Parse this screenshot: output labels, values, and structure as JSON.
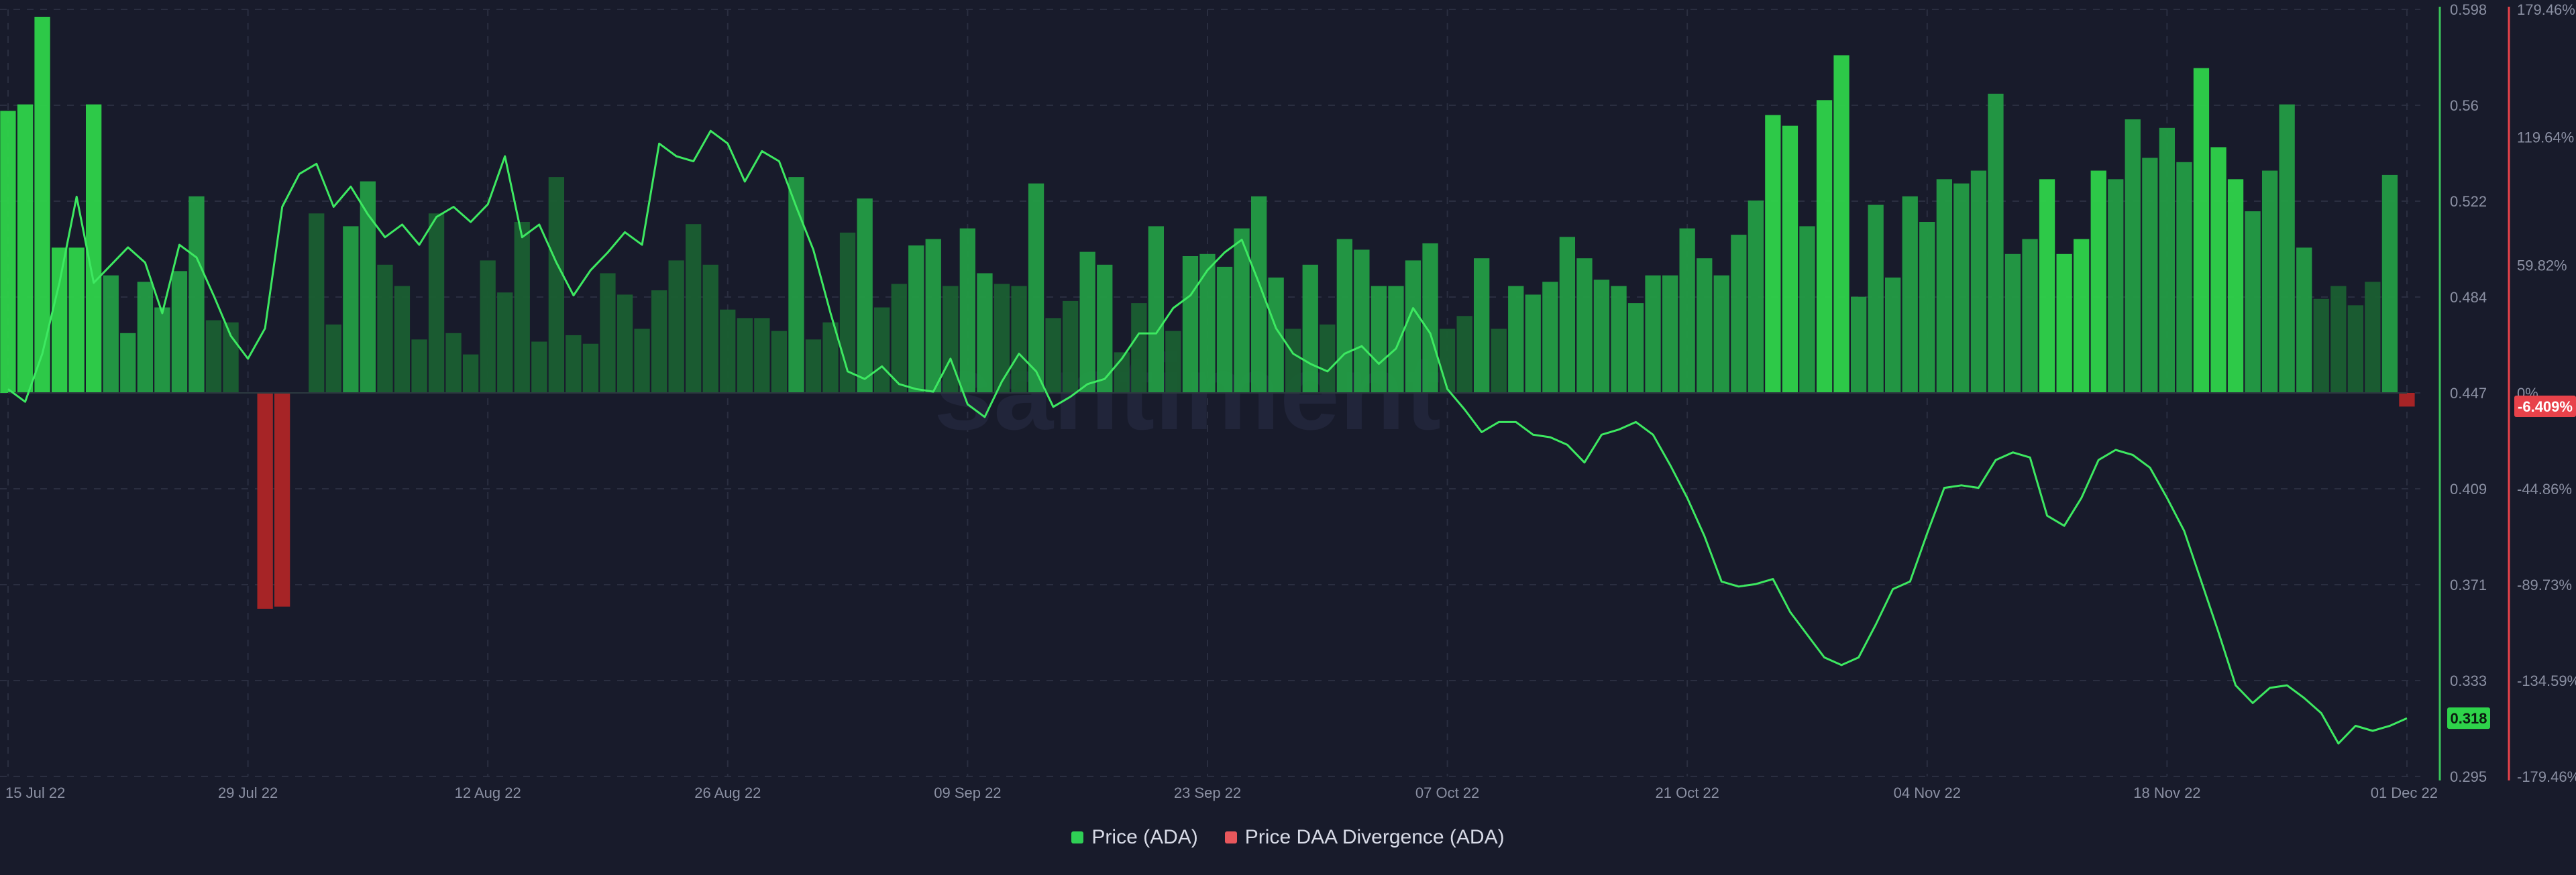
{
  "watermark": "santiment",
  "legend": {
    "price_label": "Price (ADA)",
    "divergence_label": "Price DAA Divergence (ADA)"
  },
  "colors": {
    "background": "#181b2b",
    "grid": "#2a2e40",
    "price_line": "#3de861",
    "divergence_positive_bright": "#2ed34a",
    "divergence_positive_mid": "#239c44",
    "divergence_positive_dark": "#1a5f32",
    "divergence_negative": "#a62426",
    "price_axis": "#3ac45a",
    "divergence_axis": "#e8424a"
  },
  "current": {
    "price": "0.318",
    "divergence": "-6.409%"
  },
  "chart_data": {
    "type": "line",
    "x_tick_labels": [
      "15 Jul 22",
      "29 Jul 22",
      "12 Aug 22",
      "26 Aug 22",
      "09 Sep 22",
      "23 Sep 22",
      "07 Oct 22",
      "21 Oct 22",
      "04 Nov 22",
      "18 Nov 22",
      "01 Dec 22"
    ],
    "y_left_ticks": [
      "0.598",
      "0.56",
      "0.522",
      "0.484",
      "0.447",
      "0.409",
      "0.371",
      "0.333",
      "0.295"
    ],
    "y_right_ticks": [
      "179.46%",
      "119.64%",
      "59.82%",
      "0%",
      "-44.86%",
      "-89.73%",
      "-134.59%",
      "-179.46%"
    ],
    "price_range": [
      0.295,
      0.598
    ],
    "divergence_range": [
      -179.46,
      179.46
    ],
    "x_range_days": [
      0,
      140
    ],
    "series": [
      {
        "name": "Price (ADA)",
        "type": "line",
        "axis": "left",
        "x_days": [
          0,
          1,
          2,
          3,
          4,
          5,
          6,
          7,
          8,
          9,
          10,
          11,
          12,
          13,
          14,
          15,
          16,
          17,
          18,
          19,
          20,
          21,
          22,
          23,
          24,
          25,
          26,
          27,
          28,
          29,
          30,
          31,
          32,
          33,
          34,
          35,
          36,
          37,
          38,
          39,
          40,
          41,
          42,
          43,
          44,
          45,
          46,
          47,
          48,
          49,
          50,
          51,
          52,
          53,
          54,
          55,
          56,
          57,
          58,
          59,
          60,
          61,
          62,
          63,
          64,
          65,
          66,
          67,
          68,
          69,
          70,
          71,
          72,
          73,
          74,
          75,
          76,
          77,
          78,
          79,
          80,
          81,
          82,
          83,
          84,
          85,
          86,
          87,
          88,
          89,
          90,
          91,
          92,
          93,
          94,
          95,
          96,
          97,
          98,
          99,
          100,
          101,
          102,
          103,
          104,
          105,
          106,
          107,
          108,
          109,
          110,
          111,
          112,
          113,
          114,
          115,
          116,
          117,
          118,
          119,
          120,
          121,
          122,
          123,
          124,
          125,
          126,
          127,
          128,
          129,
          130,
          131,
          132,
          133,
          134,
          135,
          136,
          137,
          138,
          139,
          140
        ],
        "values": [
          0.448,
          0.443,
          0.462,
          0.49,
          0.524,
          0.49,
          0.497,
          0.504,
          0.498,
          0.478,
          0.505,
          0.5,
          0.485,
          0.469,
          0.46,
          0.472,
          0.52,
          0.533,
          0.537,
          0.52,
          0.528,
          0.517,
          0.508,
          0.513,
          0.505,
          0.516,
          0.52,
          0.514,
          0.521,
          0.54,
          0.508,
          0.513,
          0.498,
          0.485,
          0.495,
          0.502,
          0.51,
          0.505,
          0.545,
          0.54,
          0.538,
          0.55,
          0.545,
          0.53,
          0.542,
          0.538,
          0.52,
          0.503,
          0.478,
          0.455,
          0.452,
          0.457,
          0.45,
          0.448,
          0.447,
          0.46,
          0.442,
          0.437,
          0.451,
          0.462,
          0.455,
          0.441,
          0.445,
          0.45,
          0.452,
          0.46,
          0.47,
          0.47,
          0.48,
          0.485,
          0.495,
          0.502,
          0.507,
          0.49,
          0.472,
          0.462,
          0.458,
          0.455,
          0.462,
          0.465,
          0.458,
          0.464,
          0.48,
          0.47,
          0.448,
          0.44,
          0.431,
          0.435,
          0.435,
          0.43,
          0.429,
          0.426,
          0.419,
          0.43,
          0.432,
          0.435,
          0.43,
          0.418,
          0.405,
          0.39,
          0.372,
          0.37,
          0.371,
          0.373,
          0.36,
          0.351,
          0.342,
          0.339,
          0.342,
          0.355,
          0.369,
          0.372,
          0.391,
          0.409,
          0.41,
          0.409,
          0.42,
          0.423,
          0.421,
          0.398,
          0.394,
          0.405,
          0.42,
          0.424,
          0.422,
          0.417,
          0.405,
          0.392,
          0.372,
          0.352,
          0.331,
          0.324,
          0.33,
          0.331,
          0.326,
          0.32,
          0.308,
          0.315,
          0.313,
          0.315,
          0.318
        ],
        "note_values": "daily close approx"
      },
      {
        "name": "Price DAA Divergence (ADA)",
        "type": "bar",
        "axis": "right",
        "x_days": [
          0,
          1,
          2,
          3,
          4,
          5,
          6,
          7,
          8,
          9,
          10,
          11,
          12,
          13,
          14,
          15,
          16,
          17,
          18,
          19,
          20,
          21,
          22,
          23,
          24,
          25,
          26,
          27,
          28,
          29,
          30,
          31,
          32,
          33,
          34,
          35,
          36,
          37,
          38,
          39,
          40,
          41,
          42,
          43,
          44,
          45,
          46,
          47,
          48,
          49,
          50,
          51,
          52,
          53,
          54,
          55,
          56,
          57,
          58,
          59,
          60,
          61,
          62,
          63,
          64,
          65,
          66,
          67,
          68,
          69,
          70,
          71,
          72,
          73,
          74,
          75,
          76,
          77,
          78,
          79,
          80,
          81,
          82,
          83,
          84,
          85,
          86,
          87,
          88,
          89,
          90,
          91,
          92,
          93,
          94,
          95,
          96,
          97,
          98,
          99,
          100,
          101,
          102,
          103,
          104,
          105,
          106,
          107,
          108,
          109,
          110,
          111,
          112,
          113,
          114,
          115,
          116,
          117,
          118,
          119,
          120,
          121,
          122,
          123,
          124,
          125,
          126,
          127,
          128,
          129,
          130,
          131,
          132,
          133,
          134,
          135,
          136,
          137,
          138,
          139,
          140
        ],
        "values": [
          132,
          135,
          176,
          68,
          68,
          135,
          55,
          28,
          52,
          40,
          57,
          92,
          34,
          33,
          0,
          -101,
          -100,
          0,
          84,
          32,
          78,
          99,
          60,
          50,
          25,
          84,
          28,
          18,
          62,
          47,
          80,
          24,
          101,
          27,
          23,
          56,
          46,
          30,
          48,
          62,
          79,
          60,
          39,
          35,
          35,
          29,
          101,
          25,
          33,
          75,
          91,
          40,
          51,
          69,
          72,
          50,
          77,
          56,
          51,
          50,
          98,
          35,
          43,
          66,
          60,
          19,
          42,
          78,
          29,
          64,
          65,
          59,
          77,
          92,
          54,
          30,
          60,
          32,
          72,
          67,
          50,
          50,
          62,
          70,
          30,
          36,
          63,
          30,
          50,
          46,
          52,
          73,
          63,
          53,
          50,
          42,
          55,
          55,
          77,
          63,
          55,
          74,
          90,
          130,
          125,
          78,
          137,
          158,
          45,
          88,
          54,
          92,
          80,
          100,
          98,
          104,
          140,
          65,
          72,
          100,
          65,
          72,
          104,
          100,
          128,
          110,
          124,
          108,
          152,
          115,
          100,
          85,
          104,
          135,
          68,
          44,
          50,
          41,
          52,
          102,
          -6.4
        ],
        "color_level": [
          2,
          2,
          2,
          2,
          2,
          2,
          1,
          1,
          1,
          1,
          1,
          1,
          0,
          0,
          0,
          0,
          0,
          0,
          0,
          0,
          1,
          1,
          0,
          0,
          0,
          0,
          0,
          0,
          0,
          0,
          0,
          0,
          0,
          0,
          0,
          0,
          0,
          0,
          0,
          0,
          0,
          0,
          0,
          0,
          0,
          0,
          1,
          0,
          0,
          0,
          1,
          0,
          0,
          1,
          1,
          0,
          1,
          1,
          0,
          0,
          1,
          0,
          0,
          1,
          1,
          0,
          0,
          1,
          0,
          1,
          1,
          1,
          1,
          1,
          1,
          0,
          1,
          0,
          1,
          1,
          1,
          1,
          1,
          1,
          0,
          0,
          1,
          0,
          1,
          1,
          1,
          1,
          1,
          1,
          1,
          1,
          1,
          1,
          1,
          1,
          1,
          1,
          1,
          2,
          2,
          1,
          2,
          2,
          1,
          1,
          1,
          1,
          1,
          1,
          1,
          1,
          1,
          1,
          1,
          2,
          2,
          2,
          2,
          1,
          1,
          1,
          1,
          1,
          2,
          2,
          2,
          1,
          1,
          1,
          1,
          0,
          0,
          0,
          0,
          1,
          0
        ]
      }
    ],
    "grid": true,
    "legend_position": "bottom-center"
  }
}
